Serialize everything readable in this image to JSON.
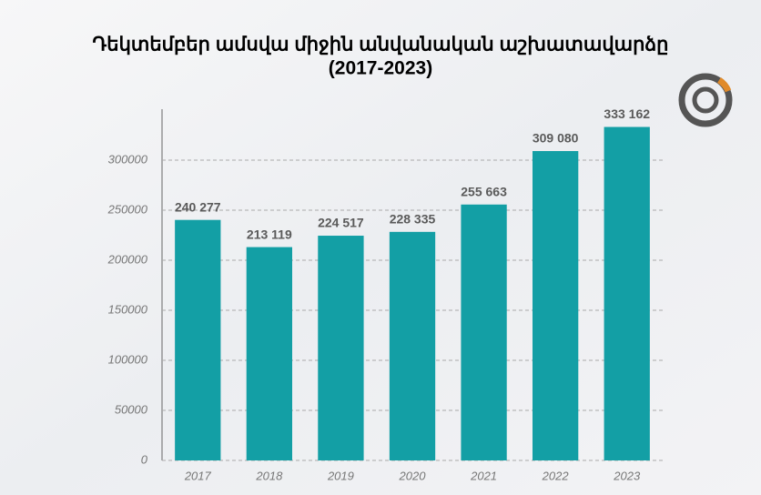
{
  "chart_data": {
    "type": "bar",
    "title": "Դեկտեմբեր ամսվա միջին անվանական աշխատավարձը",
    "subtitle": "(2017-2023)",
    "categories": [
      "2017",
      "2018",
      "2019",
      "2020",
      "2021",
      "2022",
      "2023"
    ],
    "values": [
      240277,
      213119,
      224517,
      228335,
      255663,
      309080,
      333162
    ],
    "value_labels": [
      "240 277",
      "213 119",
      "224 517",
      "228 335",
      "255 663",
      "309 080",
      "333 162"
    ],
    "color": "#139fa5",
    "ylim": [
      0,
      350000
    ],
    "yticks": [
      0,
      50000,
      100000,
      150000,
      200000,
      250000,
      300000
    ],
    "grid": true
  }
}
